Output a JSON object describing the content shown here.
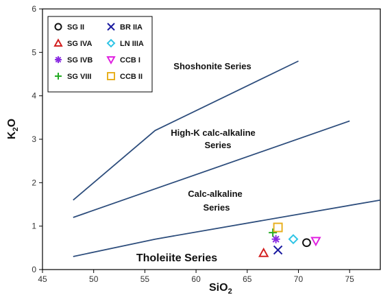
{
  "chart_data": {
    "type": "scatter",
    "xlabel": "SiO",
    "xlabel_sub": "2",
    "ylabel": "K",
    "ylabel_sub": "2",
    "ylabel_suffix": "O",
    "xlim": [
      45,
      78
    ],
    "ylim": [
      0,
      6
    ],
    "x_ticks": [
      "45",
      "50",
      "55",
      "60",
      "65",
      "70",
      "75"
    ],
    "y_ticks": [
      "0",
      "1",
      "2",
      "3",
      "4",
      "5",
      "6"
    ],
    "legend_position": "top-left",
    "boundary_lines": [
      {
        "points": [
          [
            48,
            1.6
          ],
          [
            56,
            3.2
          ],
          [
            70,
            4.8
          ]
        ]
      },
      {
        "points": [
          [
            48,
            1.2
          ],
          [
            75,
            3.42
          ]
        ]
      },
      {
        "points": [
          [
            48,
            0.3
          ],
          [
            56,
            0.7
          ],
          [
            78,
            1.6
          ]
        ]
      }
    ],
    "regions": [
      {
        "label": "Shoshonite Series"
      },
      {
        "label": "High-K calc-alkaline",
        "label2": "Series"
      },
      {
        "label": "Calc-alkaline",
        "label2": "Series"
      },
      {
        "label": "Tholeiite Series"
      }
    ],
    "series": [
      {
        "name": "SG II",
        "marker": "circle",
        "color": "#111111",
        "x": 70.8,
        "y": 0.62
      },
      {
        "name": "SG IVA",
        "marker": "triangle-up",
        "color": "#d32020",
        "x": 66.6,
        "y": 0.38
      },
      {
        "name": "SG IVB",
        "marker": "asterisk",
        "color": "#8a2be2",
        "x": 67.8,
        "y": 0.7
      },
      {
        "name": "SG VIII",
        "marker": "plus",
        "color": "#22aa22",
        "x": 67.5,
        "y": 0.85
      },
      {
        "name": "BR IIA",
        "marker": "x",
        "color": "#1a1aa0",
        "x": 68.0,
        "y": 0.45
      },
      {
        "name": "LN IIIA",
        "marker": "diamond",
        "color": "#2ec4e6",
        "x": 69.5,
        "y": 0.7
      },
      {
        "name": "CCB I",
        "marker": "triangle-down",
        "color": "#e020e0",
        "x": 71.7,
        "y": 0.66
      },
      {
        "name": "CCB II",
        "marker": "square",
        "color": "#e8b020",
        "x": 68.0,
        "y": 0.97
      }
    ],
    "colors": {
      "boundary_line": "#2d4d7c",
      "axis": "#000000"
    }
  }
}
